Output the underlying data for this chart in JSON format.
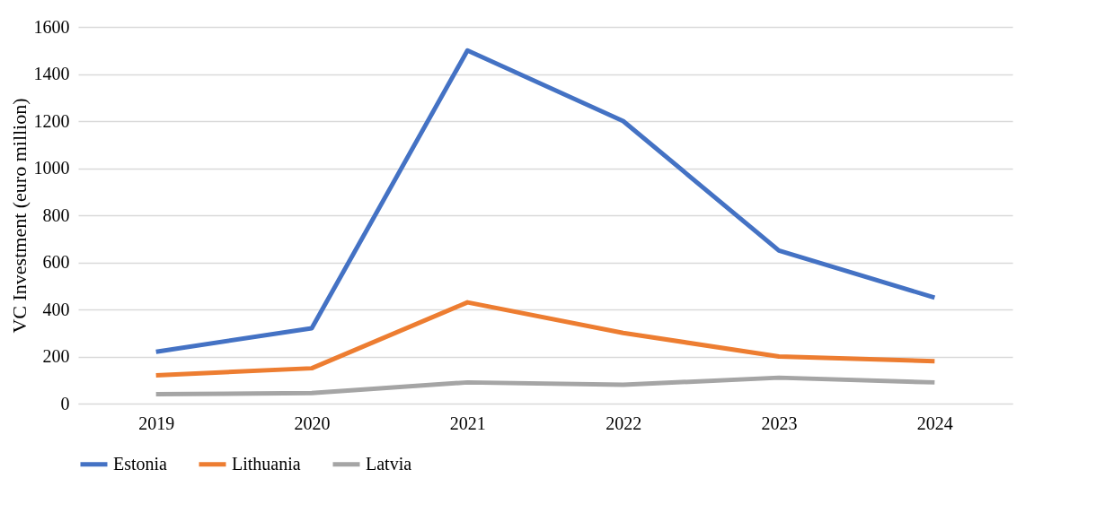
{
  "chart_data": {
    "type": "line",
    "ylabel": "VC Investment (euro million)",
    "categories": [
      "2019",
      "2020",
      "2021",
      "2022",
      "2023",
      "2024"
    ],
    "series": [
      {
        "name": "Estonia",
        "color": "#4472c4",
        "values": [
          220,
          320,
          1500,
          1200,
          650,
          450
        ]
      },
      {
        "name": "Lithuania",
        "color": "#ed7d31",
        "values": [
          120,
          150,
          430,
          300,
          200,
          180
        ]
      },
      {
        "name": "Latvia",
        "color": "#a5a5a5",
        "values": [
          40,
          45,
          90,
          80,
          110,
          90
        ]
      }
    ],
    "ylim": [
      0,
      1600
    ],
    "yticks": [
      0,
      200,
      400,
      600,
      800,
      1000,
      1200,
      1400,
      1600
    ],
    "grid": "y",
    "legend": "bottom",
    "marker": "none",
    "line_style": "solid"
  }
}
